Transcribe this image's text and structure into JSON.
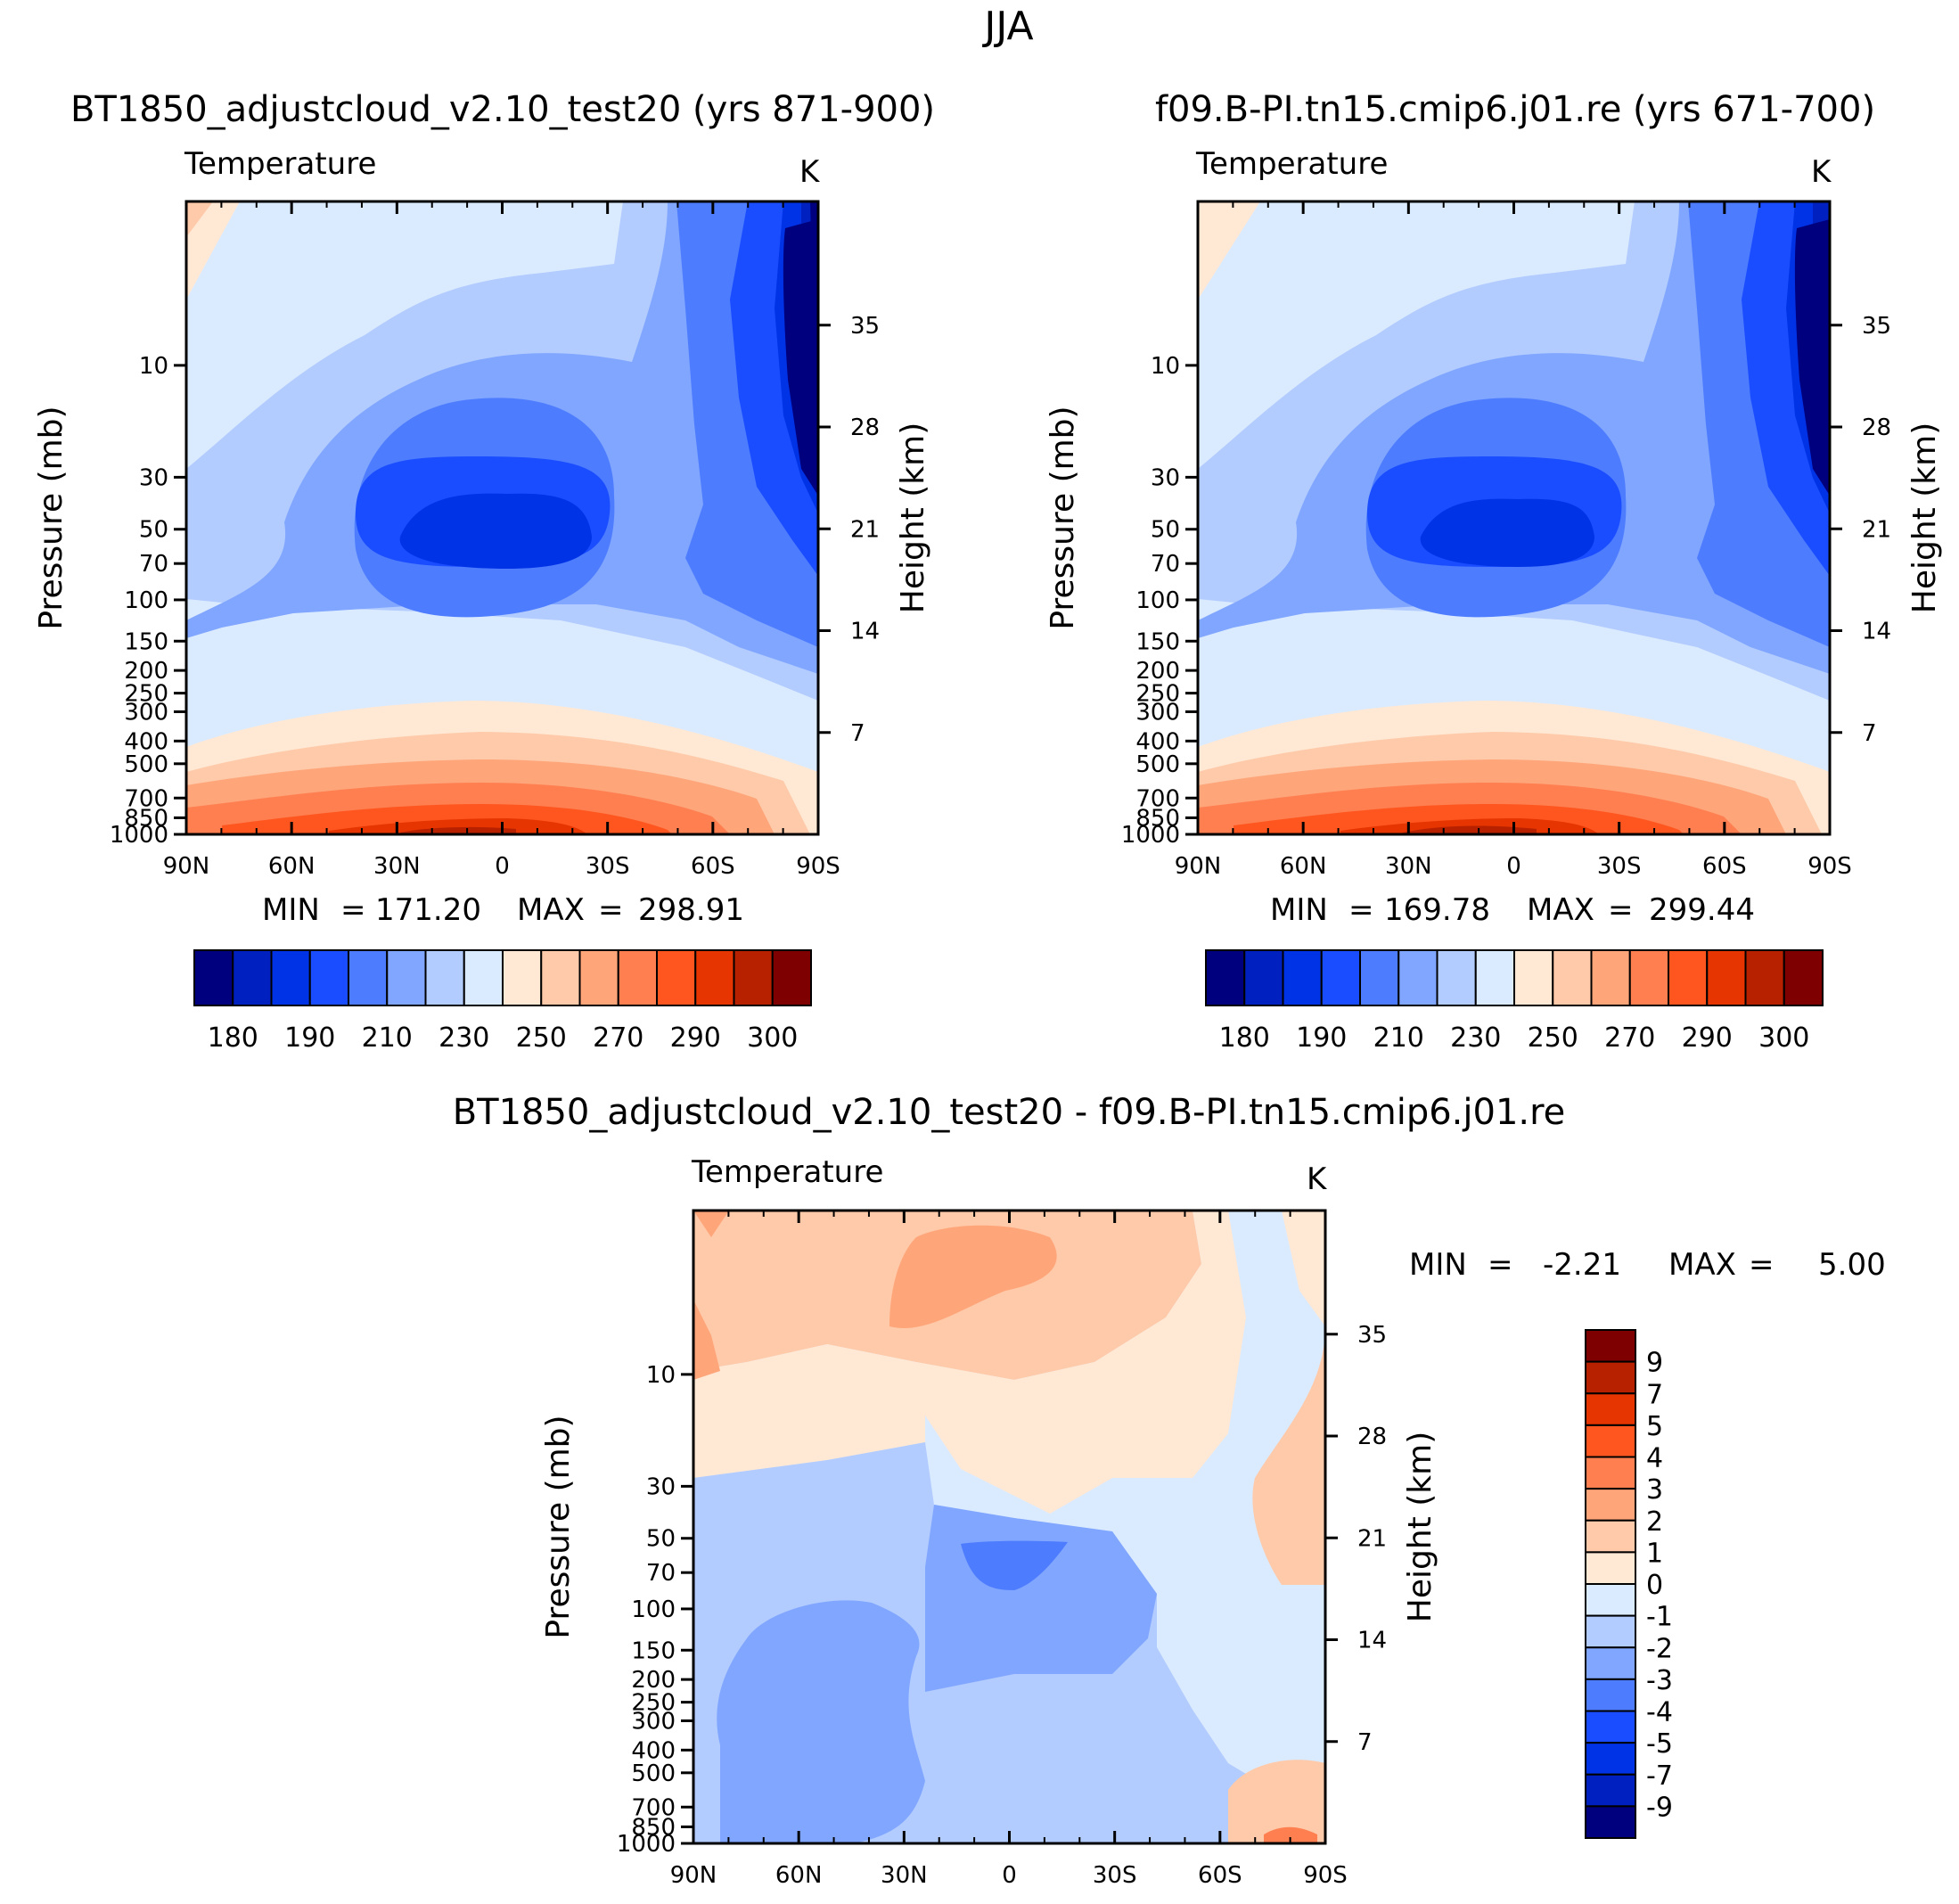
{
  "figure": {
    "season": "JJA",
    "variable": "Temperature",
    "units": "K",
    "left_ylabel": "Pressure (mb)",
    "right_ylabel": "Height (km)"
  },
  "colors": {
    "abs_scale": [
      "#00007f",
      "#0021c0",
      "#0033e6",
      "#1a4dff",
      "#4d7cff",
      "#80a6ff",
      "#b3ccff",
      "#dbebff",
      "#ffe8d4",
      "#ffcaa9",
      "#ffa57a",
      "#ff7f50",
      "#ff561f",
      "#e63500",
      "#b82100",
      "#7f0000"
    ],
    "diff_scale": [
      "#00007f",
      "#0021c0",
      "#0033e6",
      "#1a4dff",
      "#4d7cff",
      "#80a6ff",
      "#b3ccff",
      "#dbebff",
      "#ffe8d4",
      "#ffcaa9",
      "#ffa57a",
      "#ff7f50",
      "#ff561f",
      "#e63500",
      "#b82100",
      "#7f0000"
    ]
  },
  "chart_data": [
    {
      "type": "contour",
      "title": "BT1850_adjustcloud_v2.10_test20 (yrs 871-900)",
      "label_left": "Temperature",
      "label_right": "K",
      "stats": {
        "min_label": "MIN",
        "min": "171.20",
        "max_label": "MAX",
        "max": "298.91"
      },
      "x_ticks": [
        "90N",
        "60N",
        "30N",
        "0",
        "30S",
        "60S",
        "90S"
      ],
      "y_ticks": [
        "10",
        "30",
        "50",
        "70",
        "100",
        "150",
        "200",
        "250",
        "300",
        "400",
        "500",
        "700",
        "850",
        "1000"
      ],
      "height_ticks": [
        "35",
        "28",
        "21",
        "14",
        "7"
      ],
      "colorbar_labels": [
        "180",
        "190",
        "210",
        "230",
        "250",
        "270",
        "290",
        "300"
      ]
    },
    {
      "type": "contour",
      "title": "f09.B-PI.tn15.cmip6.j01.re (yrs 671-700)",
      "label_left": "Temperature",
      "label_right": "K",
      "stats": {
        "min_label": "MIN",
        "min": "169.78",
        "max_label": "MAX",
        "max": "299.44"
      },
      "x_ticks": [
        "90N",
        "60N",
        "30N",
        "0",
        "30S",
        "60S",
        "90S"
      ],
      "y_ticks": [
        "10",
        "30",
        "50",
        "70",
        "100",
        "150",
        "200",
        "250",
        "300",
        "400",
        "500",
        "700",
        "850",
        "1000"
      ],
      "height_ticks": [
        "35",
        "28",
        "21",
        "14",
        "7"
      ],
      "colorbar_labels": [
        "180",
        "190",
        "210",
        "230",
        "250",
        "270",
        "290",
        "300"
      ]
    },
    {
      "type": "contour",
      "title": "BT1850_adjustcloud_v2.10_test20 - f09.B-PI.tn15.cmip6.j01.re",
      "label_left": "Temperature",
      "label_right": "K",
      "stats": {
        "min_label": "MIN",
        "min": "-2.21",
        "max_label": "MAX",
        "max": "5.00"
      },
      "x_ticks": [
        "90N",
        "60N",
        "30N",
        "0",
        "30S",
        "60S",
        "90S"
      ],
      "y_ticks": [
        "10",
        "30",
        "50",
        "70",
        "100",
        "150",
        "200",
        "250",
        "300",
        "400",
        "500",
        "700",
        "850",
        "1000"
      ],
      "height_ticks": [
        "35",
        "28",
        "21",
        "14",
        "7"
      ],
      "colorbar_labels": [
        "9",
        "7",
        "5",
        "4",
        "3",
        "2",
        "1",
        "0",
        "-1",
        "-2",
        "-3",
        "-4",
        "-5",
        "-7",
        "-9"
      ]
    }
  ]
}
